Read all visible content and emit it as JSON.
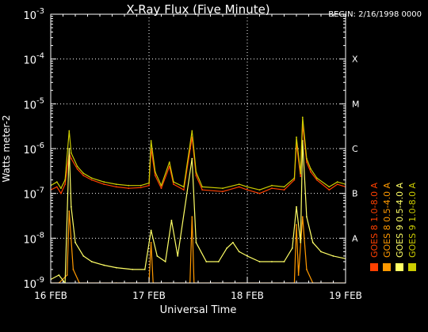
{
  "chart_data": {
    "type": "line",
    "title": "X-Ray Flux (Five Minute)",
    "begin_label": "BEGIN: 2/16/1998 0000",
    "xlabel": "Universal Time",
    "ylabel": "Watts meter-2",
    "y_scale": "log",
    "ylim": [
      1e-09,
      0.001
    ],
    "xlim": [
      "1998-02-16 00:00",
      "1998-02-19 00:00"
    ],
    "x_ticks": [
      {
        "x": "1998-02-16 00:00",
        "label": "16 FEB"
      },
      {
        "x": "1998-02-17 00:00",
        "label": "17 FEB"
      },
      {
        "x": "1998-02-18 00:00",
        "label": "18 FEB"
      },
      {
        "x": "1998-02-19 00:00",
        "label": "19 FEB"
      }
    ],
    "y_ticks": [
      {
        "value": 1e-09,
        "base": "10",
        "exp": "-9"
      },
      {
        "value": 1e-08,
        "base": "10",
        "exp": "-8"
      },
      {
        "value": 1e-07,
        "base": "10",
        "exp": "-7"
      },
      {
        "value": 1e-06,
        "base": "10",
        "exp": "-6"
      },
      {
        "value": 1e-05,
        "base": "10",
        "exp": "-5"
      },
      {
        "value": 0.0001,
        "base": "10",
        "exp": "-4"
      },
      {
        "value": 0.001,
        "base": "10",
        "exp": "-3"
      }
    ],
    "flare_classes": [
      {
        "label": "A",
        "value": 1e-08
      },
      {
        "label": "B",
        "value": 1e-07
      },
      {
        "label": "C",
        "value": 1e-06
      },
      {
        "label": "M",
        "value": 1e-05
      },
      {
        "label": "X",
        "value": 0.0001
      }
    ],
    "grid": "dotted",
    "legend_position": "right, vertical",
    "series": [
      {
        "name": "GOES 8  1.0-8.0 A",
        "color": "#ff4000",
        "points": [
          [
            "1998-02-16 00:00",
            1.2e-07
          ],
          [
            "1998-02-16 01:30",
            1.4e-07
          ],
          [
            "1998-02-16 02:30",
            1e-07
          ],
          [
            "1998-02-16 03:30",
            1.6e-07
          ],
          [
            "1998-02-16 04:30",
            8e-07
          ],
          [
            "1998-02-16 05:00",
            6e-07
          ],
          [
            "1998-02-16 06:30",
            3.5e-07
          ],
          [
            "1998-02-16 08:00",
            2.5e-07
          ],
          [
            "1998-02-16 10:00",
            2e-07
          ],
          [
            "1998-02-16 13:00",
            1.6e-07
          ],
          [
            "1998-02-16 16:00",
            1.4e-07
          ],
          [
            "1998-02-16 19:00",
            1.3e-07
          ],
          [
            "1998-02-16 22:00",
            1.35e-07
          ],
          [
            "1998-02-17 00:00",
            1.5e-07
          ],
          [
            "1998-02-17 00:30",
            1e-06
          ],
          [
            "1998-02-17 01:30",
            2.5e-07
          ],
          [
            "1998-02-17 03:00",
            1.3e-07
          ],
          [
            "1998-02-17 05:00",
            4e-07
          ],
          [
            "1998-02-17 06:00",
            1.6e-07
          ],
          [
            "1998-02-17 08:30",
            1.2e-07
          ],
          [
            "1998-02-17 10:30",
            1.8e-06
          ],
          [
            "1998-02-17 11:30",
            2.5e-07
          ],
          [
            "1998-02-17 13:00",
            1.2e-07
          ],
          [
            "1998-02-17 18:00",
            1.1e-07
          ],
          [
            "1998-02-17 22:00",
            1.4e-07
          ],
          [
            "1998-02-18 00:00",
            1.2e-07
          ],
          [
            "1998-02-18 03:00",
            1e-07
          ],
          [
            "1998-02-18 06:00",
            1.3e-07
          ],
          [
            "1998-02-18 09:00",
            1.2e-07
          ],
          [
            "1998-02-18 11:30",
            2e-07
          ],
          [
            "1998-02-18 12:00",
            1.3e-06
          ],
          [
            "1998-02-18 13:00",
            2.4e-07
          ],
          [
            "1998-02-18 13:30",
            3.5e-06
          ],
          [
            "1998-02-18 14:30",
            5e-07
          ],
          [
            "1998-02-18 15:30",
            3e-07
          ],
          [
            "1998-02-18 17:00",
            2e-07
          ],
          [
            "1998-02-18 20:00",
            1.2e-07
          ],
          [
            "1998-02-18 22:00",
            1.6e-07
          ],
          [
            "1998-02-19 00:00",
            1.4e-07
          ]
        ]
      },
      {
        "name": "GOES 8  0.5-4.0 A",
        "color": "#ff9900",
        "points": [
          [
            "1998-02-16 00:00",
            1e-09
          ],
          [
            "1998-02-16 02:00",
            1e-09
          ],
          [
            "1998-02-16 04:00",
            1.5e-09
          ],
          [
            "1998-02-16 04:30",
            4e-08
          ],
          [
            "1998-02-16 05:30",
            2e-09
          ],
          [
            "1998-02-16 07:00",
            1e-09
          ],
          [
            "1998-02-16 16:00",
            1e-09
          ],
          [
            "1998-02-17 00:00",
            1e-09
          ],
          [
            "1998-02-17 00:30",
            8e-09
          ],
          [
            "1998-02-17 01:00",
            1e-09
          ],
          [
            "1998-02-17 10:00",
            1e-09
          ],
          [
            "1998-02-17 10:30",
            3e-08
          ],
          [
            "1998-02-17 11:00",
            1e-09
          ],
          [
            "1998-02-18 11:30",
            1e-09
          ],
          [
            "1998-02-18 12:00",
            2e-08
          ],
          [
            "1998-02-18 12:30",
            1.5e-09
          ],
          [
            "1998-02-18 13:30",
            3e-08
          ],
          [
            "1998-02-18 14:30",
            2e-09
          ],
          [
            "1998-02-18 16:00",
            1e-09
          ],
          [
            "1998-02-19 00:00",
            1e-09
          ]
        ]
      },
      {
        "name": "GOES 9  0.5-4.0 A",
        "color": "#ffff66",
        "points": [
          [
            "1998-02-16 00:00",
            1.2e-09
          ],
          [
            "1998-02-16 02:00",
            1.5e-09
          ],
          [
            "1998-02-16 03:30",
            1e-09
          ],
          [
            "1998-02-16 04:30",
            1e-06
          ],
          [
            "1998-02-16 05:00",
            5e-08
          ],
          [
            "1998-02-16 06:00",
            8e-09
          ],
          [
            "1998-02-16 08:00",
            4e-09
          ],
          [
            "1998-02-16 10:00",
            3e-09
          ],
          [
            "1998-02-16 13:00",
            2.5e-09
          ],
          [
            "1998-02-16 16:00",
            2.2e-09
          ],
          [
            "1998-02-16 20:00",
            2e-09
          ],
          [
            "1998-02-16 23:00",
            2e-09
          ],
          [
            "1998-02-17 00:30",
            1.5e-08
          ],
          [
            "1998-02-17 02:00",
            4e-09
          ],
          [
            "1998-02-17 04:00",
            3e-09
          ],
          [
            "1998-02-17 05:30",
            2.5e-08
          ],
          [
            "1998-02-17 07:00",
            4e-09
          ],
          [
            "1998-02-17 10:30",
            6e-07
          ],
          [
            "1998-02-17 11:30",
            8e-09
          ],
          [
            "1998-02-17 14:00",
            3e-09
          ],
          [
            "1998-02-17 17:00",
            3e-09
          ],
          [
            "1998-02-17 19:00",
            6e-09
          ],
          [
            "1998-02-17 20:30",
            8e-09
          ],
          [
            "1998-02-17 22:00",
            5e-09
          ],
          [
            "1998-02-18 00:00",
            4e-09
          ],
          [
            "1998-02-18 03:00",
            3e-09
          ],
          [
            "1998-02-18 06:00",
            3e-09
          ],
          [
            "1998-02-18 09:00",
            3e-09
          ],
          [
            "1998-02-18 11:00",
            6e-09
          ],
          [
            "1998-02-18 12:00",
            5e-08
          ],
          [
            "1998-02-18 13:00",
            8e-09
          ],
          [
            "1998-02-18 13:30",
            1.5e-06
          ],
          [
            "1998-02-18 14:30",
            3e-08
          ],
          [
            "1998-02-18 16:00",
            8e-09
          ],
          [
            "1998-02-18 18:00",
            5e-09
          ],
          [
            "1998-02-18 21:00",
            4e-09
          ],
          [
            "1998-02-19 00:00",
            3.5e-09
          ]
        ]
      },
      {
        "name": "GOES 9  1.0-8.0 A",
        "color": "#cccc00",
        "points": [
          [
            "1998-02-16 00:00",
            1.5e-07
          ],
          [
            "1998-02-16 01:30",
            1.8e-07
          ],
          [
            "1998-02-16 02:30",
            1.3e-07
          ],
          [
            "1998-02-16 03:30",
            2e-07
          ],
          [
            "1998-02-16 04:30",
            2.5e-06
          ],
          [
            "1998-02-16 05:00",
            8e-07
          ],
          [
            "1998-02-16 06:30",
            4e-07
          ],
          [
            "1998-02-16 08:00",
            2.8e-07
          ],
          [
            "1998-02-16 10:00",
            2.2e-07
          ],
          [
            "1998-02-16 13:00",
            1.8e-07
          ],
          [
            "1998-02-16 16:00",
            1.6e-07
          ],
          [
            "1998-02-16 19:00",
            1.5e-07
          ],
          [
            "1998-02-16 22:00",
            1.5e-07
          ],
          [
            "1998-02-17 00:00",
            1.7e-07
          ],
          [
            "1998-02-17 00:30",
            1.5e-06
          ],
          [
            "1998-02-17 01:30",
            3e-07
          ],
          [
            "1998-02-17 03:00",
            1.5e-07
          ],
          [
            "1998-02-17 05:00",
            5e-07
          ],
          [
            "1998-02-17 06:00",
            1.8e-07
          ],
          [
            "1998-02-17 08:30",
            1.4e-07
          ],
          [
            "1998-02-17 10:30",
            2.5e-06
          ],
          [
            "1998-02-17 11:30",
            3e-07
          ],
          [
            "1998-02-17 13:00",
            1.4e-07
          ],
          [
            "1998-02-17 18:00",
            1.3e-07
          ],
          [
            "1998-02-17 22:00",
            1.6e-07
          ],
          [
            "1998-02-18 00:00",
            1.4e-07
          ],
          [
            "1998-02-18 03:00",
            1.2e-07
          ],
          [
            "1998-02-18 06:00",
            1.5e-07
          ],
          [
            "1998-02-18 09:00",
            1.4e-07
          ],
          [
            "1998-02-18 11:30",
            2.2e-07
          ],
          [
            "1998-02-18 12:00",
            1.8e-06
          ],
          [
            "1998-02-18 13:00",
            2.8e-07
          ],
          [
            "1998-02-18 13:30",
            5e-06
          ],
          [
            "1998-02-18 14:30",
            6e-07
          ],
          [
            "1998-02-18 15:30",
            3.5e-07
          ],
          [
            "1998-02-18 17:00",
            2.2e-07
          ],
          [
            "1998-02-18 20:00",
            1.4e-07
          ],
          [
            "1998-02-18 22:00",
            1.8e-07
          ],
          [
            "1998-02-19 00:00",
            1.6e-07
          ]
        ]
      }
    ]
  }
}
